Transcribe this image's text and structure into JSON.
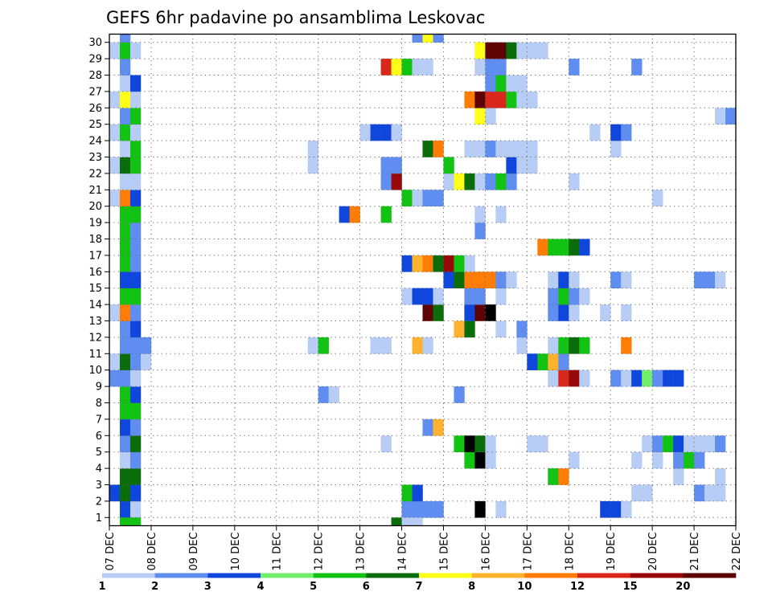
{
  "chart_data": {
    "type": "heatmap",
    "title": "GEFS 6hr padavine po ansamblima Leskovac",
    "xlabel": "",
    "ylabel": "",
    "x_ticks": [
      "07 DEC",
      "08 DEC",
      "09 DEC",
      "10 DEC",
      "11 DEC",
      "12 DEC",
      "13 DEC",
      "14 DEC",
      "15 DEC",
      "16 DEC",
      "17 DEC",
      "18 DEC",
      "19 DEC",
      "20 DEC",
      "21 DEC",
      "22 DEC"
    ],
    "y_ticks": [
      "1",
      "2",
      "3",
      "4",
      "5",
      "6",
      "7",
      "8",
      "9",
      "10",
      "11",
      "12",
      "13",
      "14",
      "15",
      "16",
      "17",
      "18",
      "19",
      "20",
      "21",
      "22",
      "23",
      "24",
      "25",
      "26",
      "27",
      "28",
      "29",
      "30"
    ],
    "time_step_hours": 6,
    "n_steps": 60,
    "n_members": 30,
    "grid": true,
    "legend_placement": "bottom",
    "levels": [
      "1",
      "2",
      "3",
      "4",
      "5",
      "6",
      "7",
      "8",
      "10",
      "12",
      "15",
      "20"
    ],
    "colors": [
      "#b8cdf5",
      "#5f8ef0",
      "#0f46dc",
      "#72ee6a",
      "#13c313",
      "#0a6d0a",
      "#ffff1a",
      "#ffb22d",
      "#ff7d06",
      "#d9271c",
      "#980a0a",
      "#5e0303"
    ],
    "cells": [
      [
        1,
        1,
        3
      ],
      [
        1,
        2,
        1
      ],
      [
        1,
        28,
        2
      ],
      [
        1,
        29,
        2
      ],
      [
        1,
        30,
        2
      ],
      [
        1,
        31,
        2
      ],
      [
        1,
        35,
        13
      ],
      [
        1,
        37,
        1
      ],
      [
        1,
        47,
        3
      ],
      [
        1,
        48,
        3
      ],
      [
        1,
        49,
        1
      ],
      [
        2,
        0,
        3
      ],
      [
        2,
        1,
        6
      ],
      [
        2,
        2,
        3
      ],
      [
        2,
        28,
        5
      ],
      [
        2,
        29,
        3
      ],
      [
        2,
        50,
        1
      ],
      [
        2,
        51,
        1
      ],
      [
        2,
        56,
        2
      ],
      [
        2,
        57,
        1
      ],
      [
        2,
        58,
        1
      ],
      [
        3,
        1,
        6
      ],
      [
        3,
        2,
        6
      ],
      [
        3,
        42,
        5
      ],
      [
        3,
        43,
        9
      ],
      [
        3,
        54,
        1
      ],
      [
        3,
        58,
        1
      ],
      [
        4,
        1,
        1
      ],
      [
        4,
        2,
        2
      ],
      [
        4,
        34,
        5
      ],
      [
        4,
        35,
        13
      ],
      [
        4,
        36,
        1
      ],
      [
        4,
        44,
        1
      ],
      [
        4,
        50,
        1
      ],
      [
        4,
        52,
        1
      ],
      [
        4,
        54,
        2
      ],
      [
        4,
        55,
        5
      ],
      [
        4,
        56,
        2
      ],
      [
        5,
        1,
        2
      ],
      [
        5,
        2,
        6
      ],
      [
        5,
        26,
        1
      ],
      [
        5,
        33,
        5
      ],
      [
        5,
        34,
        14
      ],
      [
        5,
        35,
        6
      ],
      [
        5,
        36,
        1
      ],
      [
        5,
        40,
        1
      ],
      [
        5,
        41,
        1
      ],
      [
        5,
        51,
        1
      ],
      [
        5,
        52,
        2
      ],
      [
        5,
        53,
        5
      ],
      [
        5,
        54,
        3
      ],
      [
        5,
        55,
        1
      ],
      [
        5,
        56,
        1
      ],
      [
        5,
        57,
        1
      ],
      [
        5,
        58,
        2
      ],
      [
        6,
        1,
        3
      ],
      [
        6,
        2,
        2
      ],
      [
        6,
        30,
        2
      ],
      [
        6,
        31,
        8
      ],
      [
        7,
        1,
        5
      ],
      [
        7,
        2,
        5
      ],
      [
        8,
        1,
        5
      ],
      [
        8,
        2,
        3
      ],
      [
        8,
        20,
        2
      ],
      [
        8,
        21,
        1
      ],
      [
        8,
        33,
        2
      ],
      [
        9,
        0,
        2
      ],
      [
        9,
        1,
        2
      ],
      [
        9,
        2,
        1
      ],
      [
        9,
        42,
        1
      ],
      [
        9,
        43,
        10
      ],
      [
        9,
        44,
        11
      ],
      [
        9,
        45,
        1
      ],
      [
        9,
        48,
        2
      ],
      [
        9,
        49,
        1
      ],
      [
        9,
        50,
        3
      ],
      [
        9,
        51,
        4
      ],
      [
        9,
        52,
        2
      ],
      [
        9,
        53,
        3
      ],
      [
        9,
        54,
        3
      ],
      [
        10,
        0,
        1
      ],
      [
        10,
        1,
        6
      ],
      [
        10,
        2,
        2
      ],
      [
        10,
        3,
        1
      ],
      [
        10,
        40,
        3
      ],
      [
        10,
        41,
        5
      ],
      [
        10,
        42,
        8
      ],
      [
        10,
        43,
        2
      ],
      [
        11,
        1,
        2
      ],
      [
        11,
        2,
        2
      ],
      [
        11,
        3,
        2
      ],
      [
        11,
        19,
        1
      ],
      [
        11,
        20,
        5
      ],
      [
        11,
        25,
        1
      ],
      [
        11,
        26,
        1
      ],
      [
        11,
        29,
        8
      ],
      [
        11,
        30,
        1
      ],
      [
        11,
        39,
        1
      ],
      [
        11,
        42,
        1
      ],
      [
        11,
        43,
        5
      ],
      [
        11,
        44,
        6
      ],
      [
        11,
        45,
        5
      ],
      [
        11,
        49,
        9
      ],
      [
        12,
        1,
        2
      ],
      [
        12,
        2,
        3
      ],
      [
        12,
        33,
        8
      ],
      [
        12,
        34,
        6
      ],
      [
        12,
        37,
        1
      ],
      [
        12,
        39,
        2
      ],
      [
        13,
        0,
        1
      ],
      [
        13,
        1,
        9
      ],
      [
        13,
        2,
        2
      ],
      [
        13,
        30,
        12
      ],
      [
        13,
        31,
        6
      ],
      [
        13,
        34,
        3
      ],
      [
        13,
        35,
        12
      ],
      [
        13,
        36,
        13
      ],
      [
        13,
        42,
        2
      ],
      [
        13,
        43,
        3
      ],
      [
        13,
        44,
        1
      ],
      [
        13,
        47,
        1
      ],
      [
        13,
        49,
        1
      ],
      [
        14,
        1,
        5
      ],
      [
        14,
        2,
        5
      ],
      [
        14,
        28,
        1
      ],
      [
        14,
        29,
        3
      ],
      [
        14,
        30,
        3
      ],
      [
        14,
        31,
        1
      ],
      [
        14,
        34,
        2
      ],
      [
        14,
        35,
        2
      ],
      [
        14,
        37,
        1
      ],
      [
        14,
        42,
        2
      ],
      [
        14,
        43,
        5
      ],
      [
        14,
        44,
        2
      ],
      [
        14,
        45,
        1
      ],
      [
        15,
        1,
        3
      ],
      [
        15,
        2,
        3
      ],
      [
        15,
        32,
        3
      ],
      [
        15,
        33,
        6
      ],
      [
        15,
        34,
        9
      ],
      [
        15,
        35,
        9
      ],
      [
        15,
        36,
        9
      ],
      [
        15,
        37,
        2
      ],
      [
        15,
        38,
        1
      ],
      [
        15,
        42,
        1
      ],
      [
        15,
        43,
        3
      ],
      [
        15,
        44,
        1
      ],
      [
        15,
        48,
        2
      ],
      [
        15,
        49,
        1
      ],
      [
        15,
        56,
        2
      ],
      [
        15,
        57,
        2
      ],
      [
        15,
        58,
        1
      ],
      [
        16,
        1,
        5
      ],
      [
        16,
        2,
        2
      ],
      [
        16,
        28,
        3
      ],
      [
        16,
        29,
        8
      ],
      [
        16,
        30,
        9
      ],
      [
        16,
        31,
        6
      ],
      [
        16,
        32,
        11
      ],
      [
        16,
        33,
        5
      ],
      [
        16,
        34,
        1
      ],
      [
        17,
        1,
        5
      ],
      [
        17,
        2,
        2
      ],
      [
        17,
        41,
        9
      ],
      [
        17,
        42,
        5
      ],
      [
        17,
        43,
        5
      ],
      [
        17,
        44,
        6
      ],
      [
        17,
        45,
        3
      ],
      [
        18,
        1,
        5
      ],
      [
        18,
        2,
        2
      ],
      [
        18,
        35,
        2
      ],
      [
        19,
        1,
        5
      ],
      [
        19,
        2,
        5
      ],
      [
        19,
        22,
        3
      ],
      [
        19,
        23,
        9
      ],
      [
        19,
        26,
        5
      ],
      [
        19,
        35,
        1
      ],
      [
        19,
        37,
        1
      ],
      [
        20,
        0,
        1
      ],
      [
        20,
        1,
        9
      ],
      [
        20,
        2,
        3
      ],
      [
        20,
        28,
        5
      ],
      [
        20,
        29,
        1
      ],
      [
        20,
        30,
        2
      ],
      [
        20,
        31,
        2
      ],
      [
        20,
        52,
        1
      ],
      [
        21,
        1,
        1
      ],
      [
        21,
        2,
        1
      ],
      [
        21,
        26,
        2
      ],
      [
        21,
        27,
        11
      ],
      [
        21,
        32,
        1
      ],
      [
        21,
        33,
        7
      ],
      [
        21,
        34,
        6
      ],
      [
        21,
        35,
        1
      ],
      [
        21,
        36,
        2
      ],
      [
        21,
        37,
        5
      ],
      [
        21,
        38,
        2
      ],
      [
        21,
        44,
        1
      ],
      [
        22,
        0,
        1
      ],
      [
        22,
        1,
        6
      ],
      [
        22,
        2,
        5
      ],
      [
        22,
        19,
        1
      ],
      [
        22,
        26,
        2
      ],
      [
        22,
        27,
        2
      ],
      [
        22,
        32,
        5
      ],
      [
        22,
        38,
        3
      ],
      [
        22,
        39,
        1
      ],
      [
        22,
        40,
        1
      ],
      [
        23,
        1,
        1
      ],
      [
        23,
        2,
        5
      ],
      [
        23,
        19,
        1
      ],
      [
        23,
        30,
        6
      ],
      [
        23,
        31,
        9
      ],
      [
        23,
        34,
        1
      ],
      [
        23,
        35,
        1
      ],
      [
        23,
        36,
        2
      ],
      [
        23,
        37,
        1
      ],
      [
        23,
        38,
        1
      ],
      [
        23,
        39,
        1
      ],
      [
        23,
        40,
        1
      ],
      [
        23,
        48,
        1
      ],
      [
        24,
        0,
        1
      ],
      [
        24,
        1,
        5
      ],
      [
        24,
        2,
        1
      ],
      [
        24,
        24,
        1
      ],
      [
        24,
        25,
        3
      ],
      [
        24,
        26,
        3
      ],
      [
        24,
        27,
        1
      ],
      [
        24,
        46,
        1
      ],
      [
        24,
        48,
        3
      ],
      [
        24,
        49,
        2
      ],
      [
        25,
        1,
        2
      ],
      [
        25,
        2,
        5
      ],
      [
        25,
        35,
        7
      ],
      [
        25,
        36,
        1
      ],
      [
        25,
        58,
        1
      ],
      [
        25,
        59,
        2
      ],
      [
        26,
        0,
        1
      ],
      [
        26,
        1,
        7
      ],
      [
        26,
        2,
        1
      ],
      [
        26,
        34,
        9
      ],
      [
        26,
        35,
        12
      ],
      [
        26,
        36,
        10
      ],
      [
        26,
        37,
        10
      ],
      [
        26,
        38,
        5
      ],
      [
        26,
        39,
        1
      ],
      [
        26,
        40,
        1
      ],
      [
        27,
        1,
        1
      ],
      [
        27,
        2,
        3
      ],
      [
        27,
        36,
        2
      ],
      [
        27,
        37,
        5
      ],
      [
        27,
        38,
        1
      ],
      [
        27,
        39,
        1
      ],
      [
        28,
        1,
        2
      ],
      [
        28,
        26,
        10
      ],
      [
        28,
        27,
        7
      ],
      [
        28,
        28,
        5
      ],
      [
        28,
        29,
        1
      ],
      [
        28,
        30,
        1
      ],
      [
        28,
        35,
        1
      ],
      [
        28,
        36,
        2
      ],
      [
        28,
        37,
        2
      ],
      [
        28,
        44,
        2
      ],
      [
        28,
        50,
        2
      ],
      [
        29,
        0,
        1
      ],
      [
        29,
        1,
        5
      ],
      [
        29,
        2,
        1
      ],
      [
        29,
        35,
        7
      ],
      [
        29,
        36,
        12
      ],
      [
        29,
        37,
        12
      ],
      [
        29,
        38,
        6
      ],
      [
        29,
        39,
        1
      ],
      [
        29,
        40,
        1
      ],
      [
        29,
        41,
        1
      ],
      [
        30,
        1,
        2
      ],
      [
        30,
        29,
        2
      ],
      [
        30,
        30,
        7
      ],
      [
        30,
        31,
        2
      ],
      [
        0,
        1,
        5
      ],
      [
        0,
        2,
        5
      ],
      [
        0,
        27,
        6
      ],
      [
        0,
        28,
        1
      ],
      [
        0,
        29,
        1
      ]
    ]
  }
}
